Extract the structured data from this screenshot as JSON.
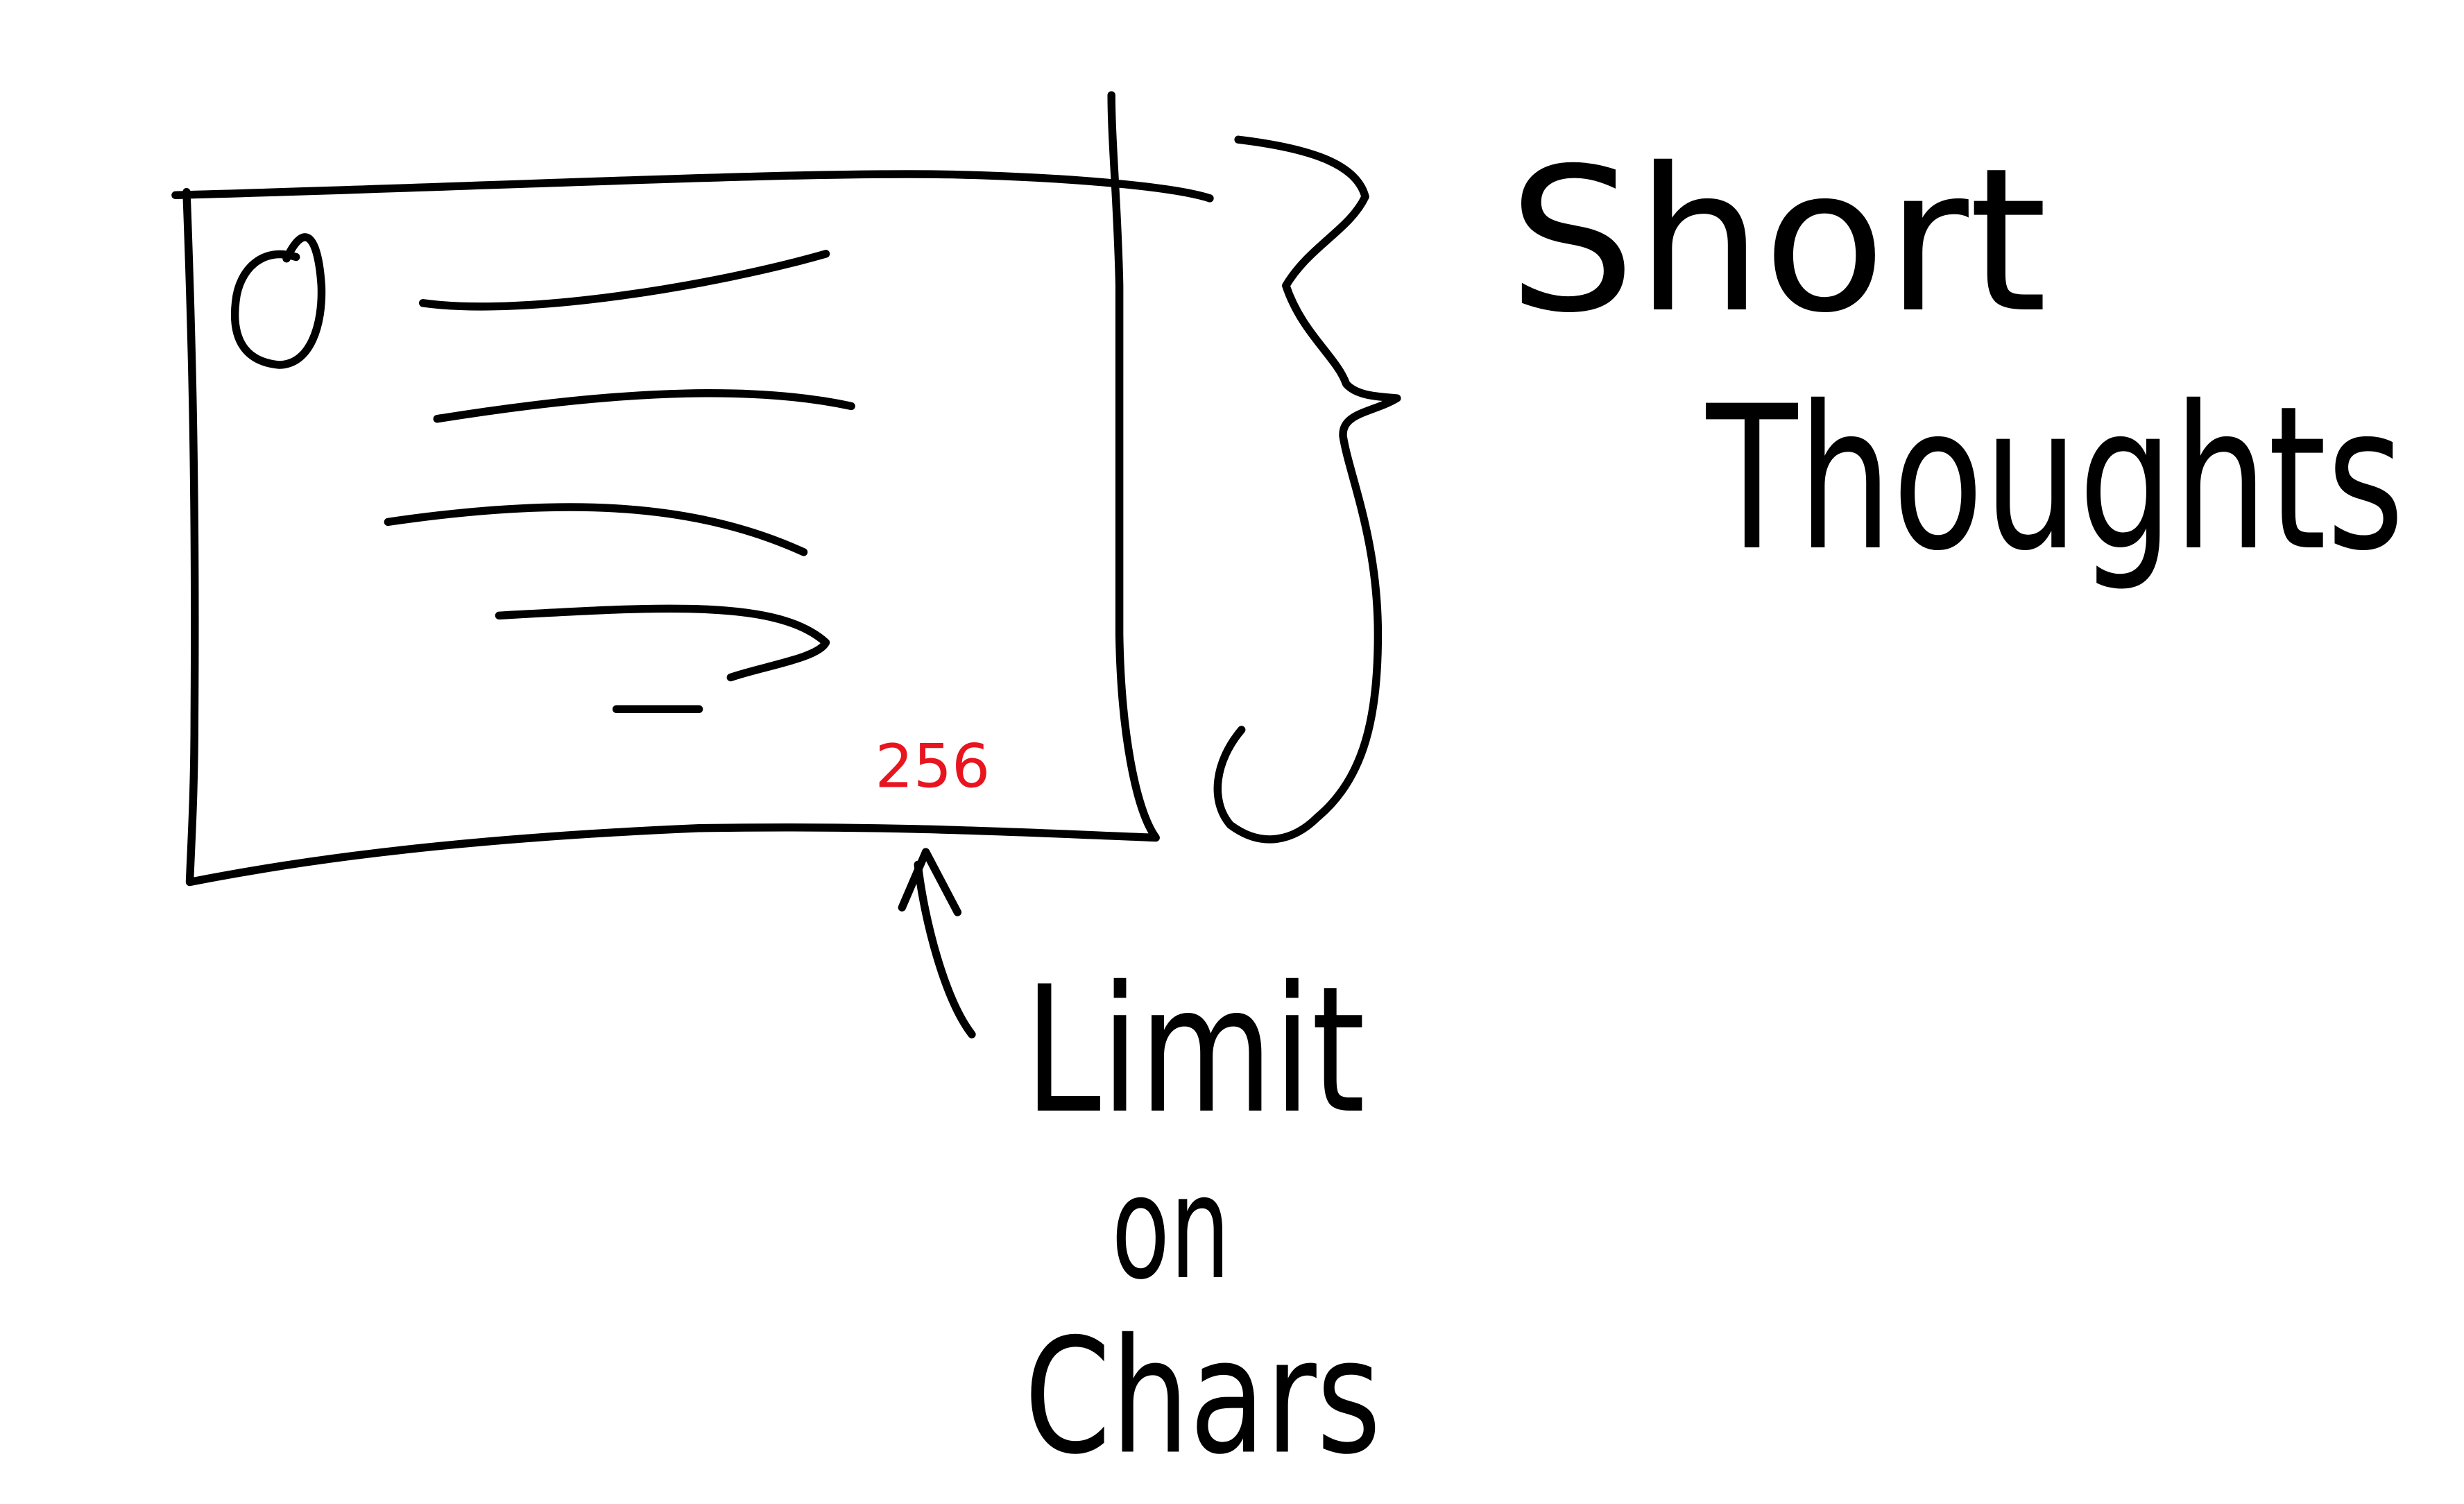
{
  "sketch": {
    "title_lines": [
      "Short",
      "Thoughts"
    ],
    "note_lines": [
      "Limit",
      "on",
      "Chars"
    ],
    "counter": "256"
  }
}
